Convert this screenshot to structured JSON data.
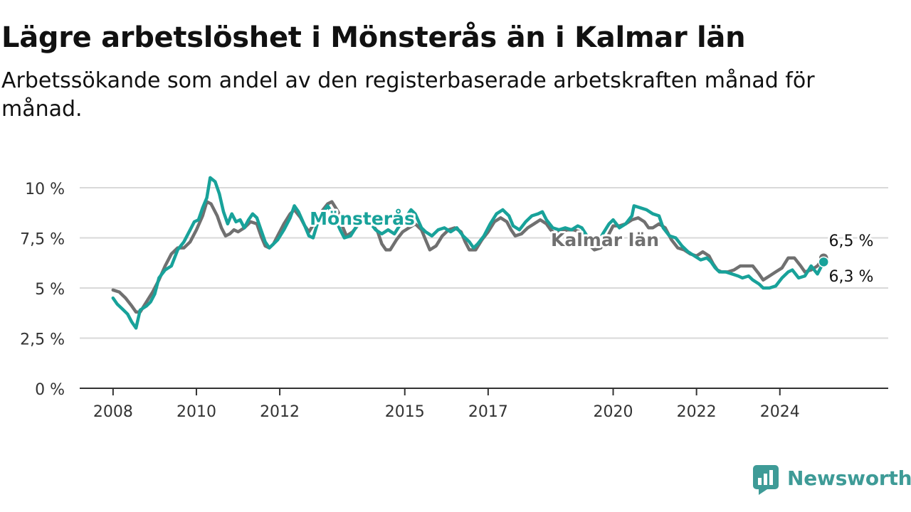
{
  "title": "Lägre arbetslöshet i Mönsterås än i Kalmar län",
  "subtitle": "Arbetssökande som andel av den registerbaserade arbetskraften månad för månad.",
  "brand": {
    "name": "Newsworthy",
    "icon": "newsworthy-logo-icon"
  },
  "colors": {
    "monsteras": "#18a29a",
    "kalmar": "#707070",
    "grid": "#d9d9d9",
    "axis": "#333333",
    "text": "#111111",
    "brand": "#3e9b97"
  },
  "chart_data": {
    "type": "line",
    "ylim": [
      0,
      10
    ],
    "xlim": [
      2007.2,
      2026.6
    ],
    "y_ticks": [
      {
        "value": 0,
        "label": "0 %"
      },
      {
        "value": 2.5,
        "label": "2,5 %"
      },
      {
        "value": 5,
        "label": "5 %"
      },
      {
        "value": 7.5,
        "label": "7,5 %"
      },
      {
        "value": 10,
        "label": "10 %"
      }
    ],
    "x_ticks": [
      {
        "value": 2008,
        "label": "2008"
      },
      {
        "value": 2010,
        "label": "2010"
      },
      {
        "value": 2012,
        "label": "2012"
      },
      {
        "value": 2015,
        "label": "2015"
      },
      {
        "value": 2017,
        "label": "2017"
      },
      {
        "value": 2020,
        "label": "2020"
      },
      {
        "value": 2022,
        "label": "2022"
      },
      {
        "value": 2024,
        "label": "2024"
      }
    ],
    "grid": true,
    "series": [
      {
        "name": "Kalmar län",
        "label": "Kalmar län",
        "end_label": "6,5 %",
        "color": "#707070",
        "points": [
          [
            2008.0,
            4.9
          ],
          [
            2008.15,
            4.8
          ],
          [
            2008.3,
            4.5
          ],
          [
            2008.45,
            4.1
          ],
          [
            2008.55,
            3.8
          ],
          [
            2008.65,
            3.8
          ],
          [
            2008.8,
            4.3
          ],
          [
            2008.95,
            4.8
          ],
          [
            2009.1,
            5.4
          ],
          [
            2009.25,
            6.1
          ],
          [
            2009.4,
            6.7
          ],
          [
            2009.55,
            7.0
          ],
          [
            2009.7,
            7.0
          ],
          [
            2009.85,
            7.3
          ],
          [
            2010.0,
            7.9
          ],
          [
            2010.15,
            8.6
          ],
          [
            2010.25,
            9.3
          ],
          [
            2010.35,
            9.2
          ],
          [
            2010.5,
            8.6
          ],
          [
            2010.6,
            8.0
          ],
          [
            2010.7,
            7.6
          ],
          [
            2010.8,
            7.7
          ],
          [
            2010.9,
            7.9
          ],
          [
            2011.0,
            7.8
          ],
          [
            2011.15,
            8.0
          ],
          [
            2011.3,
            8.3
          ],
          [
            2011.45,
            8.2
          ],
          [
            2011.55,
            7.6
          ],
          [
            2011.65,
            7.1
          ],
          [
            2011.75,
            7.0
          ],
          [
            2011.85,
            7.2
          ],
          [
            2011.95,
            7.6
          ],
          [
            2012.1,
            8.2
          ],
          [
            2012.25,
            8.7
          ],
          [
            2012.35,
            8.9
          ],
          [
            2012.5,
            8.5
          ],
          [
            2012.6,
            8.1
          ],
          [
            2012.7,
            7.8
          ],
          [
            2012.85,
            8.3
          ],
          [
            2013.0,
            8.8
          ],
          [
            2013.15,
            9.2
          ],
          [
            2013.25,
            9.3
          ],
          [
            2013.4,
            8.8
          ],
          [
            2013.5,
            8.1
          ],
          [
            2013.6,
            7.6
          ],
          [
            2013.75,
            7.8
          ],
          [
            2013.9,
            8.2
          ],
          [
            2014.05,
            8.3
          ],
          [
            2014.2,
            8.2
          ],
          [
            2014.35,
            7.8
          ],
          [
            2014.45,
            7.2
          ],
          [
            2014.55,
            6.9
          ],
          [
            2014.65,
            6.9
          ],
          [
            2014.8,
            7.4
          ],
          [
            2014.95,
            7.8
          ],
          [
            2015.1,
            8.0
          ],
          [
            2015.25,
            8.2
          ],
          [
            2015.4,
            7.9
          ],
          [
            2015.5,
            7.4
          ],
          [
            2015.6,
            6.9
          ],
          [
            2015.75,
            7.1
          ],
          [
            2015.9,
            7.6
          ],
          [
            2016.05,
            7.9
          ],
          [
            2016.2,
            8.0
          ],
          [
            2016.35,
            7.8
          ],
          [
            2016.45,
            7.3
          ],
          [
            2016.55,
            6.9
          ],
          [
            2016.7,
            6.9
          ],
          [
            2016.85,
            7.4
          ],
          [
            2017.0,
            7.8
          ],
          [
            2017.15,
            8.3
          ],
          [
            2017.3,
            8.5
          ],
          [
            2017.45,
            8.3
          ],
          [
            2017.55,
            7.9
          ],
          [
            2017.65,
            7.6
          ],
          [
            2017.8,
            7.7
          ],
          [
            2017.95,
            8.0
          ],
          [
            2018.1,
            8.2
          ],
          [
            2018.25,
            8.4
          ],
          [
            2018.4,
            8.2
          ],
          [
            2018.5,
            7.9
          ],
          [
            2018.6,
            7.7
          ],
          [
            2018.75,
            7.8
          ],
          [
            2018.9,
            7.9
          ],
          [
            2019.05,
            7.9
          ],
          [
            2019.2,
            7.8
          ],
          [
            2019.35,
            7.5
          ],
          [
            2019.45,
            7.1
          ],
          [
            2019.55,
            6.9
          ],
          [
            2019.7,
            7.0
          ],
          [
            2019.85,
            7.5
          ],
          [
            2020.0,
            8.1
          ],
          [
            2020.15,
            8.1
          ],
          [
            2020.3,
            8.2
          ],
          [
            2020.45,
            8.4
          ],
          [
            2020.6,
            8.5
          ],
          [
            2020.75,
            8.3
          ],
          [
            2020.85,
            8.0
          ],
          [
            2020.95,
            8.0
          ],
          [
            2021.1,
            8.2
          ],
          [
            2021.25,
            8.0
          ],
          [
            2021.4,
            7.4
          ],
          [
            2021.55,
            7.0
          ],
          [
            2021.7,
            6.9
          ],
          [
            2021.85,
            6.7
          ],
          [
            2022.0,
            6.6
          ],
          [
            2022.15,
            6.8
          ],
          [
            2022.3,
            6.6
          ],
          [
            2022.4,
            6.2
          ],
          [
            2022.5,
            5.9
          ],
          [
            2022.6,
            5.8
          ],
          [
            2022.75,
            5.8
          ],
          [
            2022.9,
            5.9
          ],
          [
            2023.05,
            6.1
          ],
          [
            2023.2,
            6.1
          ],
          [
            2023.35,
            6.1
          ],
          [
            2023.5,
            5.7
          ],
          [
            2023.6,
            5.4
          ],
          [
            2023.75,
            5.6
          ],
          [
            2023.9,
            5.8
          ],
          [
            2024.05,
            6.0
          ],
          [
            2024.2,
            6.5
          ],
          [
            2024.35,
            6.5
          ],
          [
            2024.5,
            6.1
          ],
          [
            2024.6,
            5.8
          ],
          [
            2024.75,
            5.9
          ],
          [
            2024.9,
            6.1
          ],
          [
            2025.05,
            6.5
          ]
        ]
      },
      {
        "name": "Mönsterås",
        "label": "Mönsterås",
        "end_label": "6,3 %",
        "color": "#18a29a",
        "points": [
          [
            2008.0,
            4.5
          ],
          [
            2008.1,
            4.2
          ],
          [
            2008.25,
            3.9
          ],
          [
            2008.35,
            3.7
          ],
          [
            2008.45,
            3.3
          ],
          [
            2008.55,
            3.0
          ],
          [
            2008.65,
            3.9
          ],
          [
            2008.8,
            4.1
          ],
          [
            2008.9,
            4.3
          ],
          [
            2009.0,
            4.7
          ],
          [
            2009.1,
            5.5
          ],
          [
            2009.25,
            5.9
          ],
          [
            2009.4,
            6.1
          ],
          [
            2009.55,
            6.9
          ],
          [
            2009.7,
            7.3
          ],
          [
            2009.85,
            7.9
          ],
          [
            2009.95,
            8.3
          ],
          [
            2010.05,
            8.4
          ],
          [
            2010.15,
            9.0
          ],
          [
            2010.25,
            9.5
          ],
          [
            2010.33,
            10.5
          ],
          [
            2010.45,
            10.3
          ],
          [
            2010.55,
            9.7
          ],
          [
            2010.65,
            8.8
          ],
          [
            2010.75,
            8.2
          ],
          [
            2010.85,
            8.7
          ],
          [
            2010.95,
            8.3
          ],
          [
            2011.05,
            8.4
          ],
          [
            2011.15,
            8.0
          ],
          [
            2011.25,
            8.4
          ],
          [
            2011.35,
            8.7
          ],
          [
            2011.45,
            8.5
          ],
          [
            2011.55,
            7.9
          ],
          [
            2011.65,
            7.3
          ],
          [
            2011.75,
            7.0
          ],
          [
            2011.85,
            7.2
          ],
          [
            2011.95,
            7.4
          ],
          [
            2012.1,
            7.9
          ],
          [
            2012.25,
            8.5
          ],
          [
            2012.35,
            9.1
          ],
          [
            2012.45,
            8.8
          ],
          [
            2012.6,
            8.1
          ],
          [
            2012.7,
            7.6
          ],
          [
            2012.8,
            7.5
          ],
          [
            2012.9,
            8.2
          ],
          [
            2013.05,
            8.8
          ],
          [
            2013.15,
            9.1
          ],
          [
            2013.3,
            8.6
          ],
          [
            2013.45,
            7.9
          ],
          [
            2013.55,
            7.5
          ],
          [
            2013.7,
            7.6
          ],
          [
            2013.85,
            8.1
          ],
          [
            2014.0,
            8.4
          ],
          [
            2014.15,
            8.3
          ],
          [
            2014.3,
            7.9
          ],
          [
            2014.45,
            7.7
          ],
          [
            2014.6,
            7.9
          ],
          [
            2014.75,
            7.7
          ],
          [
            2014.9,
            8.2
          ],
          [
            2015.05,
            8.6
          ],
          [
            2015.15,
            8.9
          ],
          [
            2015.25,
            8.7
          ],
          [
            2015.4,
            8.0
          ],
          [
            2015.5,
            7.8
          ],
          [
            2015.65,
            7.6
          ],
          [
            2015.8,
            7.9
          ],
          [
            2015.95,
            8.0
          ],
          [
            2016.1,
            7.8
          ],
          [
            2016.25,
            8.0
          ],
          [
            2016.4,
            7.6
          ],
          [
            2016.55,
            7.3
          ],
          [
            2016.65,
            7.0
          ],
          [
            2016.75,
            7.2
          ],
          [
            2016.9,
            7.6
          ],
          [
            2017.05,
            8.2
          ],
          [
            2017.2,
            8.7
          ],
          [
            2017.35,
            8.9
          ],
          [
            2017.5,
            8.6
          ],
          [
            2017.6,
            8.1
          ],
          [
            2017.75,
            7.9
          ],
          [
            2017.9,
            8.3
          ],
          [
            2018.05,
            8.6
          ],
          [
            2018.2,
            8.7
          ],
          [
            2018.3,
            8.8
          ],
          [
            2018.4,
            8.4
          ],
          [
            2018.55,
            8.0
          ],
          [
            2018.7,
            7.9
          ],
          [
            2018.85,
            8.0
          ],
          [
            2019.0,
            7.9
          ],
          [
            2019.15,
            8.1
          ],
          [
            2019.25,
            8.0
          ],
          [
            2019.4,
            7.5
          ],
          [
            2019.5,
            7.1
          ],
          [
            2019.6,
            7.1
          ],
          [
            2019.75,
            7.7
          ],
          [
            2019.9,
            8.2
          ],
          [
            2020.0,
            8.4
          ],
          [
            2020.15,
            8.0
          ],
          [
            2020.3,
            8.2
          ],
          [
            2020.45,
            8.6
          ],
          [
            2020.5,
            9.1
          ],
          [
            2020.65,
            9.0
          ],
          [
            2020.8,
            8.9
          ],
          [
            2020.95,
            8.7
          ],
          [
            2021.1,
            8.6
          ],
          [
            2021.2,
            8.0
          ],
          [
            2021.35,
            7.6
          ],
          [
            2021.5,
            7.5
          ],
          [
            2021.65,
            7.1
          ],
          [
            2021.8,
            6.8
          ],
          [
            2021.95,
            6.6
          ],
          [
            2022.1,
            6.4
          ],
          [
            2022.25,
            6.5
          ],
          [
            2022.35,
            6.3
          ],
          [
            2022.45,
            6.0
          ],
          [
            2022.55,
            5.8
          ],
          [
            2022.7,
            5.8
          ],
          [
            2022.85,
            5.7
          ],
          [
            2023.0,
            5.6
          ],
          [
            2023.1,
            5.5
          ],
          [
            2023.25,
            5.6
          ],
          [
            2023.35,
            5.4
          ],
          [
            2023.5,
            5.2
          ],
          [
            2023.6,
            5.0
          ],
          [
            2023.75,
            5.0
          ],
          [
            2023.9,
            5.1
          ],
          [
            2024.05,
            5.5
          ],
          [
            2024.2,
            5.8
          ],
          [
            2024.3,
            5.9
          ],
          [
            2024.45,
            5.5
          ],
          [
            2024.6,
            5.6
          ],
          [
            2024.75,
            6.1
          ],
          [
            2024.9,
            5.7
          ],
          [
            2025.0,
            6.1
          ],
          [
            2025.05,
            6.3
          ]
        ]
      }
    ]
  }
}
